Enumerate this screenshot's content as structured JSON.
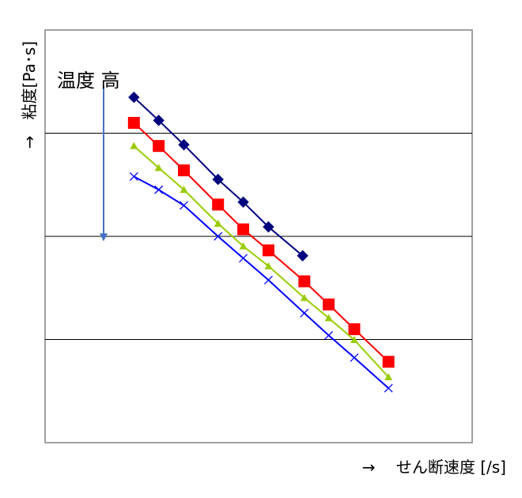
{
  "chart_data": {
    "type": "line",
    "title": "",
    "xlabel": "→　 せん断速度 [/s]",
    "ylabel": "→　粘度[Pa･s]",
    "xlim": [
      0,
      100
    ],
    "ylim": [
      0,
      100
    ],
    "grid": "horizontal",
    "legend": "none",
    "annotation": {
      "text": "温度 高",
      "arrow_from": [
        13.7,
        86.5
      ],
      "arrow_to": [
        13.7,
        48.8
      ]
    },
    "series": [
      {
        "color": "#00007F",
        "marker": "diamond",
        "x": [
          20.8,
          26.6,
          32.5,
          40.5,
          46.4,
          52.3,
          60.3
        ],
        "y": [
          83.7,
          78.1,
          72.2,
          63.8,
          58.3,
          52.3,
          45.3
        ]
      },
      {
        "color": "#FF0000",
        "marker": "square",
        "x": [
          20.8,
          26.6,
          32.5,
          40.5,
          46.4,
          52.3,
          60.7,
          66.4,
          72.4,
          80.4
        ],
        "y": [
          77.5,
          71.9,
          66.0,
          57.7,
          51.7,
          46.6,
          39.1,
          33.5,
          27.5,
          19.6
        ]
      },
      {
        "color": "#99CC00",
        "marker": "triangle",
        "x": [
          20.8,
          26.6,
          32.5,
          40.5,
          46.4,
          52.3,
          60.7,
          66.4,
          72.4,
          80.4
        ],
        "y": [
          71.9,
          66.6,
          61.3,
          53.1,
          47.6,
          42.8,
          35.1,
          30.2,
          24.9,
          15.9
        ]
      },
      {
        "color": "#0000FF",
        "marker": "x",
        "x": [
          20.8,
          26.6,
          32.5,
          40.5,
          46.4,
          52.3,
          60.7,
          66.4,
          72.4,
          80.4
        ],
        "y": [
          64.5,
          61.3,
          57.5,
          50.0,
          44.7,
          39.4,
          31.4,
          26.0,
          20.6,
          13.2
        ]
      }
    ]
  }
}
